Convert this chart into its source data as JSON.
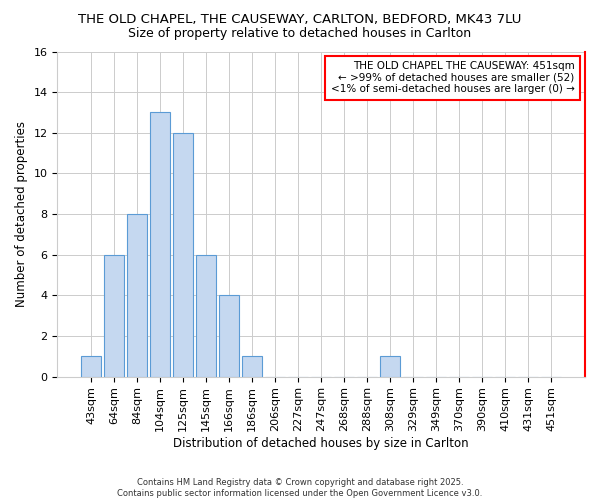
{
  "title1": "THE OLD CHAPEL, THE CAUSEWAY, CARLTON, BEDFORD, MK43 7LU",
  "title2": "Size of property relative to detached houses in Carlton",
  "xlabel": "Distribution of detached houses by size in Carlton",
  "ylabel": "Number of detached properties",
  "bar_labels": [
    "43sqm",
    "64sqm",
    "84sqm",
    "104sqm",
    "125sqm",
    "145sqm",
    "166sqm",
    "186sqm",
    "206sqm",
    "227sqm",
    "247sqm",
    "268sqm",
    "288sqm",
    "308sqm",
    "329sqm",
    "349sqm",
    "370sqm",
    "390sqm",
    "410sqm",
    "431sqm",
    "451sqm"
  ],
  "bar_values": [
    1,
    6,
    8,
    13,
    12,
    6,
    4,
    1,
    0,
    0,
    0,
    0,
    0,
    1,
    0,
    0,
    0,
    0,
    0,
    0,
    0
  ],
  "bar_color": "#c5d8f0",
  "bar_edge_color": "#5b9bd5",
  "highlight_color": "#ff0000",
  "ylim": [
    0,
    16
  ],
  "yticks": [
    0,
    2,
    4,
    6,
    8,
    10,
    12,
    14,
    16
  ],
  "annotation_title": "THE OLD CHAPEL THE CAUSEWAY: 451sqm",
  "annotation_line1": "← >99% of detached houses are smaller (52)",
  "annotation_line2": "<1% of semi-detached houses are larger (0) →",
  "footer": "Contains HM Land Registry data © Crown copyright and database right 2025.\nContains public sector information licensed under the Open Government Licence v3.0.",
  "grid_color": "#cccccc",
  "background_color": "#ffffff",
  "title_fontsize": 9.5,
  "axis_fontsize": 8.5,
  "tick_fontsize": 8,
  "annotation_fontsize": 7.5
}
